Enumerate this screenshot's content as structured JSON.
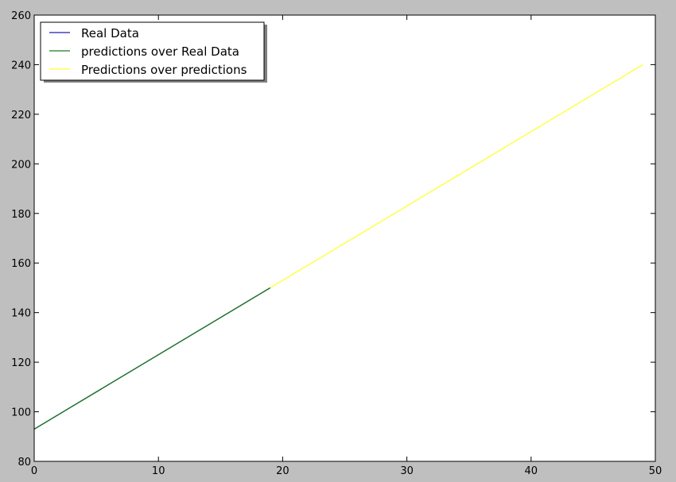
{
  "chart_data": {
    "type": "line",
    "title": "",
    "xlabel": "",
    "ylabel": "",
    "xlim": [
      0,
      50
    ],
    "ylim": [
      80,
      260
    ],
    "xticks": [
      0,
      10,
      20,
      30,
      40,
      50
    ],
    "yticks": [
      80,
      100,
      120,
      140,
      160,
      180,
      200,
      220,
      240,
      260
    ],
    "grid": false,
    "legend_position": "top-left",
    "series": [
      {
        "name": "Real Data",
        "color": "#1f1fb4",
        "x": [
          0,
          19
        ],
        "y": [
          93,
          150
        ]
      },
      {
        "name": "predictions over Real Data",
        "color": "#1a7a1a",
        "x": [
          0,
          19
        ],
        "y": [
          93,
          150
        ]
      },
      {
        "name": "Predictions over predictions",
        "color": "#ffff33",
        "x": [
          19,
          49
        ],
        "y": [
          150,
          240
        ]
      }
    ]
  }
}
